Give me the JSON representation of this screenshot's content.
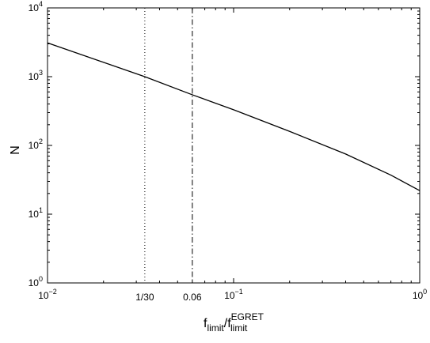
{
  "chart_data": {
    "type": "line",
    "xscale": "log",
    "yscale": "log",
    "xlim": [
      0.01,
      1
    ],
    "ylim": [
      1,
      10000
    ],
    "xlabel": {
      "base1": "f",
      "sub1": "limit",
      "sep": "/",
      "base2": "f",
      "sup2": "EGRET",
      "sub2": "limit"
    },
    "ylabel": "N",
    "x_ticks": [
      {
        "value": 0.01,
        "base": "10",
        "exp": "−2"
      },
      {
        "value": 0.1,
        "base": "10",
        "exp": "−1"
      },
      {
        "value": 1,
        "base": "10",
        "exp": "0"
      }
    ],
    "x_extra_ticks": [
      {
        "value": 0.033333,
        "label": "1/30"
      },
      {
        "value": 0.06,
        "label": "0.06"
      }
    ],
    "y_ticks": [
      {
        "value": 1,
        "base": "10",
        "exp": "0"
      },
      {
        "value": 10,
        "base": "10",
        "exp": "1"
      },
      {
        "value": 100,
        "base": "10",
        "exp": "2"
      },
      {
        "value": 1000,
        "base": "10",
        "exp": "3"
      },
      {
        "value": 10000,
        "base": "10",
        "exp": "4"
      }
    ],
    "series": [
      {
        "x": [
          0.01,
          0.0333,
          0.06,
          0.1,
          0.2,
          0.4,
          0.7,
          1
        ],
        "y": [
          3100,
          1000,
          545,
          330,
          160,
          75,
          37,
          22
        ]
      }
    ],
    "vlines": [
      {
        "x": 0.033333,
        "style": "dotted"
      },
      {
        "x": 0.06,
        "style": "dashdot"
      }
    ],
    "grid": false
  }
}
